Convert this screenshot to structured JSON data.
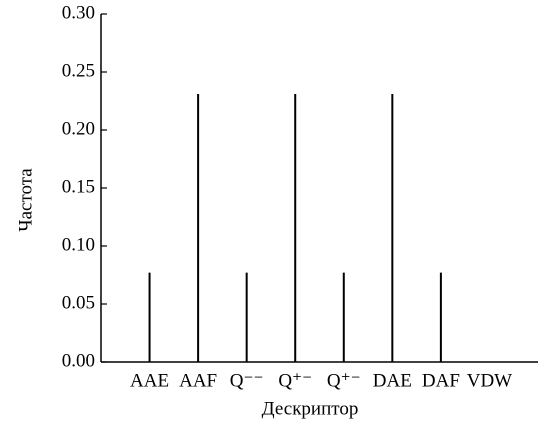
{
  "chart_data": {
    "type": "stem",
    "x_label": "Дескриптор",
    "y_label": "Частота",
    "categories": [
      "AAE",
      "AAF",
      "Q⁻⁻",
      "Q⁺⁻",
      "Q⁺⁻",
      "DAE",
      "DAF",
      "VDW"
    ],
    "values": [
      0.077,
      0.231,
      0.077,
      0.231,
      0.077,
      0.231,
      0.077,
      0
    ],
    "color": "#000000",
    "ylim": [
      0,
      0.3
    ],
    "yticks": [
      {
        "value": 0,
        "label": "0.00"
      },
      {
        "value": 0.05,
        "label": "0.05"
      },
      {
        "value": 0.1,
        "label": "0.10"
      },
      {
        "value": 0.15,
        "label": "0.15"
      },
      {
        "value": 0.2,
        "label": "0.20"
      },
      {
        "value": 0.25,
        "label": "0.25"
      },
      {
        "value": 0.3,
        "label": "0.30"
      }
    ],
    "grid": false
  }
}
